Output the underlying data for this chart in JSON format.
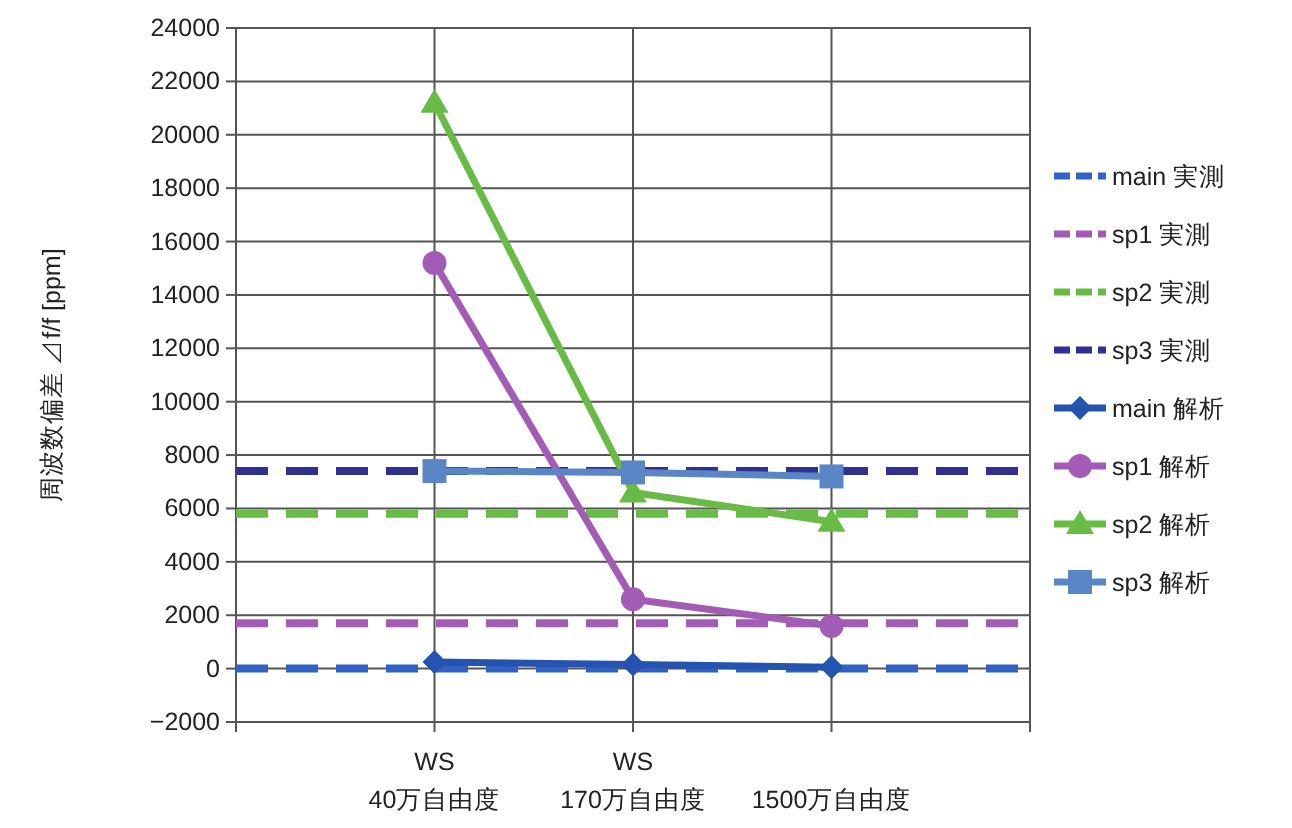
{
  "chart_data": {
    "type": "line",
    "ylabel": "周波数偏差 ⊿f/f [ppm]",
    "categories": [
      null,
      "WS\n40万自由度",
      "WS\n170万自由度",
      "1500万自由度",
      null
    ],
    "ylim": [
      -2000,
      24000
    ],
    "yticks": [
      -2000,
      0,
      2000,
      4000,
      6000,
      8000,
      10000,
      12000,
      14000,
      16000,
      18000,
      20000,
      22000,
      24000
    ],
    "grid": true,
    "legend": "right",
    "series": [
      {
        "name": "main 実測",
        "color": "#2f62c4",
        "values": [
          0,
          0,
          0,
          0,
          0
        ],
        "line_style": "dashed",
        "marker": "none"
      },
      {
        "name": "sp1  実測",
        "color": "#a35cb5",
        "values": [
          1700,
          1700,
          1700,
          1700,
          1700
        ],
        "line_style": "dashed",
        "marker": "none"
      },
      {
        "name": "sp2  実測",
        "color": "#68bb45",
        "values": [
          5800,
          5800,
          5800,
          5800,
          5800
        ],
        "line_style": "dashed",
        "marker": "none"
      },
      {
        "name": "sp3  実測",
        "color": "#2e3192",
        "values": [
          7400,
          7400,
          7400,
          7400,
          7400
        ],
        "line_style": "dashed",
        "marker": "none"
      },
      {
        "name": "main 解析",
        "color": "#2453b0",
        "values": [
          null,
          250,
          150,
          50,
          null
        ],
        "line_style": "solid",
        "marker": "diamond"
      },
      {
        "name": "sp1  解析",
        "color": "#a35cb5",
        "values": [
          null,
          15200,
          2600,
          1600,
          null
        ],
        "line_style": "solid",
        "marker": "circle"
      },
      {
        "name": "sp2  解析",
        "color": "#68bb45",
        "values": [
          null,
          21200,
          6600,
          5500,
          null
        ],
        "line_style": "solid",
        "marker": "triangle"
      },
      {
        "name": "sp3  解析",
        "color": "#5b86c5",
        "values": [
          null,
          7400,
          7350,
          7200,
          null
        ],
        "line_style": "solid",
        "marker": "square"
      }
    ]
  }
}
